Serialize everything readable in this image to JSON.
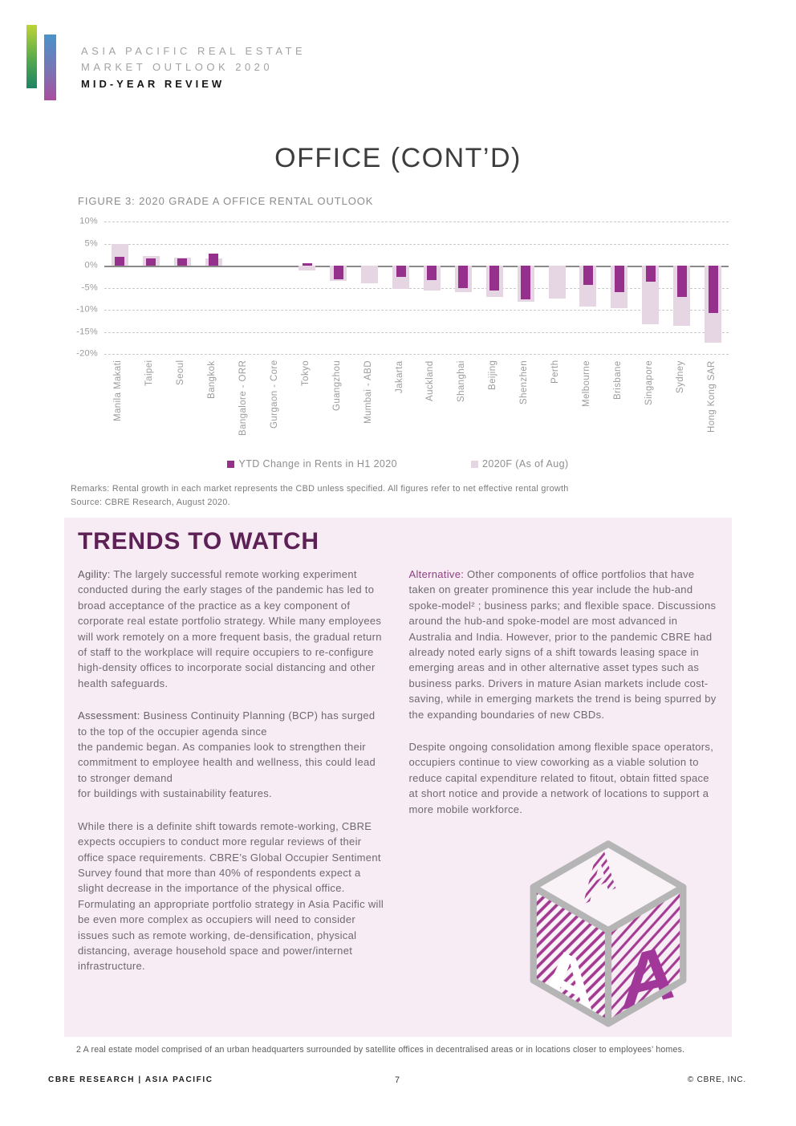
{
  "header": {
    "brand_line1": "ASIA PACIFIC REAL ESTATE",
    "brand_line2": "MARKET OUTLOOK 2020",
    "brand_line3": "MID-YEAR REVIEW"
  },
  "page": {
    "title": "OFFICE (CONT’D)"
  },
  "figure": {
    "caption": "FIGURE 3: 2020 GRADE A OFFICE RENTAL OUTLOOK",
    "remarks": "Remarks:  Rental growth in each market represents the CBD unless specified. All figures refer to net effective rental growth",
    "source": "Source:  CBRE Research, August 2020."
  },
  "chart_data": {
    "type": "bar",
    "title": "FIGURE 3: 2020 GRADE A OFFICE RENTAL OUTLOOK",
    "categories": [
      "Manila Makati",
      "Taipei",
      "Seoul",
      "Bangkok",
      "Bangalore - ORR",
      "Gurgaon - Core",
      "Tokyo",
      "Guangzhou",
      "Mumbai - ABD",
      "Jakarta",
      "Auckland",
      "Shanghai",
      "Beijing",
      "Shenzhen",
      "Perth",
      "Melbourne",
      "Brisbane",
      "Singapore",
      "Sydney",
      "Hong Kong SAR"
    ],
    "series": [
      {
        "name": "YTD Change in Rents in H1 2020",
        "color": "#96308d",
        "values": [
          2.0,
          1.7,
          1.7,
          2.8,
          0,
          0,
          0.5,
          -3.1,
          0,
          -2.5,
          -3.2,
          -5.1,
          -5.6,
          -7.6,
          0,
          -4.4,
          -6.0,
          -3.6,
          -7.0,
          -10.8
        ]
      },
      {
        "name": "2020F (As of Aug)",
        "color": "#e6d6e4",
        "values": [
          5.0,
          2.2,
          1.9,
          1.6,
          0,
          0,
          -1.0,
          -3.5,
          -4.0,
          -5.3,
          -5.6,
          -6.0,
          -7.0,
          -8.2,
          -7.5,
          -9.3,
          -9.6,
          -13.2,
          -13.7,
          -17.4
        ]
      }
    ],
    "ylim": [
      -20,
      10
    ],
    "yticks": [
      10,
      5,
      0,
      -5,
      -10,
      -15,
      -20
    ],
    "ytick_labels": [
      "10%",
      "5%",
      "0%",
      "-5%",
      "-10%",
      "-15%",
      "-20%"
    ],
    "xlabel": "",
    "ylabel": "",
    "grid": "horizontal dashed, solid zero line",
    "legend_position": "bottom"
  },
  "trends": {
    "heading": "TRENDS TO WATCH",
    "left_column": [
      {
        "label": "Agility:",
        "label_purple": false,
        "text": "The largely successful remote working experiment conducted during the early stages of the pandemic has led to broad acceptance of the practice as a key component of corporate real estate portfolio strategy. While many employees will work remotely on a more frequent basis, the gradual return of staff to the workplace will require occupiers to re-configure high-density offices to incorporate social distancing and other health safeguards."
      },
      {
        "label": "Assessment:",
        "label_purple": false,
        "text": "Business Continuity Planning (BCP) has surged to the top of the occupier agenda since\nthe pandemic began. As companies look to strengthen their commitment to employee health and wellness, this could lead to stronger demand\nfor buildings with sustainability features."
      },
      {
        "label": "",
        "label_purple": false,
        "text": "While there is a definite shift towards remote-working, CBRE expects occupiers to conduct more regular reviews of their office space requirements. CBRE’s Global Occupier Sentiment Survey found that more than 40% of respondents expect a slight decrease in the importance of the physical office. Formulating an appropriate portfolio strategy in Asia Pacific will be even more complex as occupiers will need to consider issues such as remote working, de-densification, physical distancing, average household space and power/internet infrastructure."
      }
    ],
    "right_column": [
      {
        "label": "Alternative:",
        "label_purple": true,
        "text": "Other components of office portfolios that have taken on greater prominence this year include the hub-and spoke-model² ; business parks; and flexible space. Discussions around the hub-and spoke-model are most advanced in Australia and India. However, prior to the pandemic CBRE had already noted early signs of a shift towards leasing space in emerging areas and in other alternative asset types such as business parks. Drivers in mature Asian markets include cost-saving, while in emerging markets the trend is being spurred by the expanding boundaries of new CBDs."
      },
      {
        "label": "",
        "label_purple": false,
        "text": "Despite ongoing consolidation among flexible space operators, occupiers continue to view coworking as a viable solution to reduce capital expenditure related to fitout, obtain fitted space at short notice and provide a network of locations to support a more mobile workforce."
      }
    ],
    "cube_letter": "A"
  },
  "footnote": "2 A real estate model comprised of an urban headquarters surrounded by satellite offices in decentralised areas or in locations closer to employees’ homes.",
  "footer": {
    "left": "CBRE RESEARCH | ASIA PACIFIC",
    "page_number": "7",
    "right": "© CBRE, INC."
  },
  "colors": {
    "ytd_bar": "#96308d",
    "forecast_bar": "#e6d6e4",
    "trends_background": "#f7ebf4",
    "trends_heading": "#5e2156",
    "logo_gradient_green": [
      "#bcd437",
      "#1f8464"
    ],
    "logo_gradient_blue": [
      "#4a93cb",
      "#aa4d9e"
    ]
  }
}
